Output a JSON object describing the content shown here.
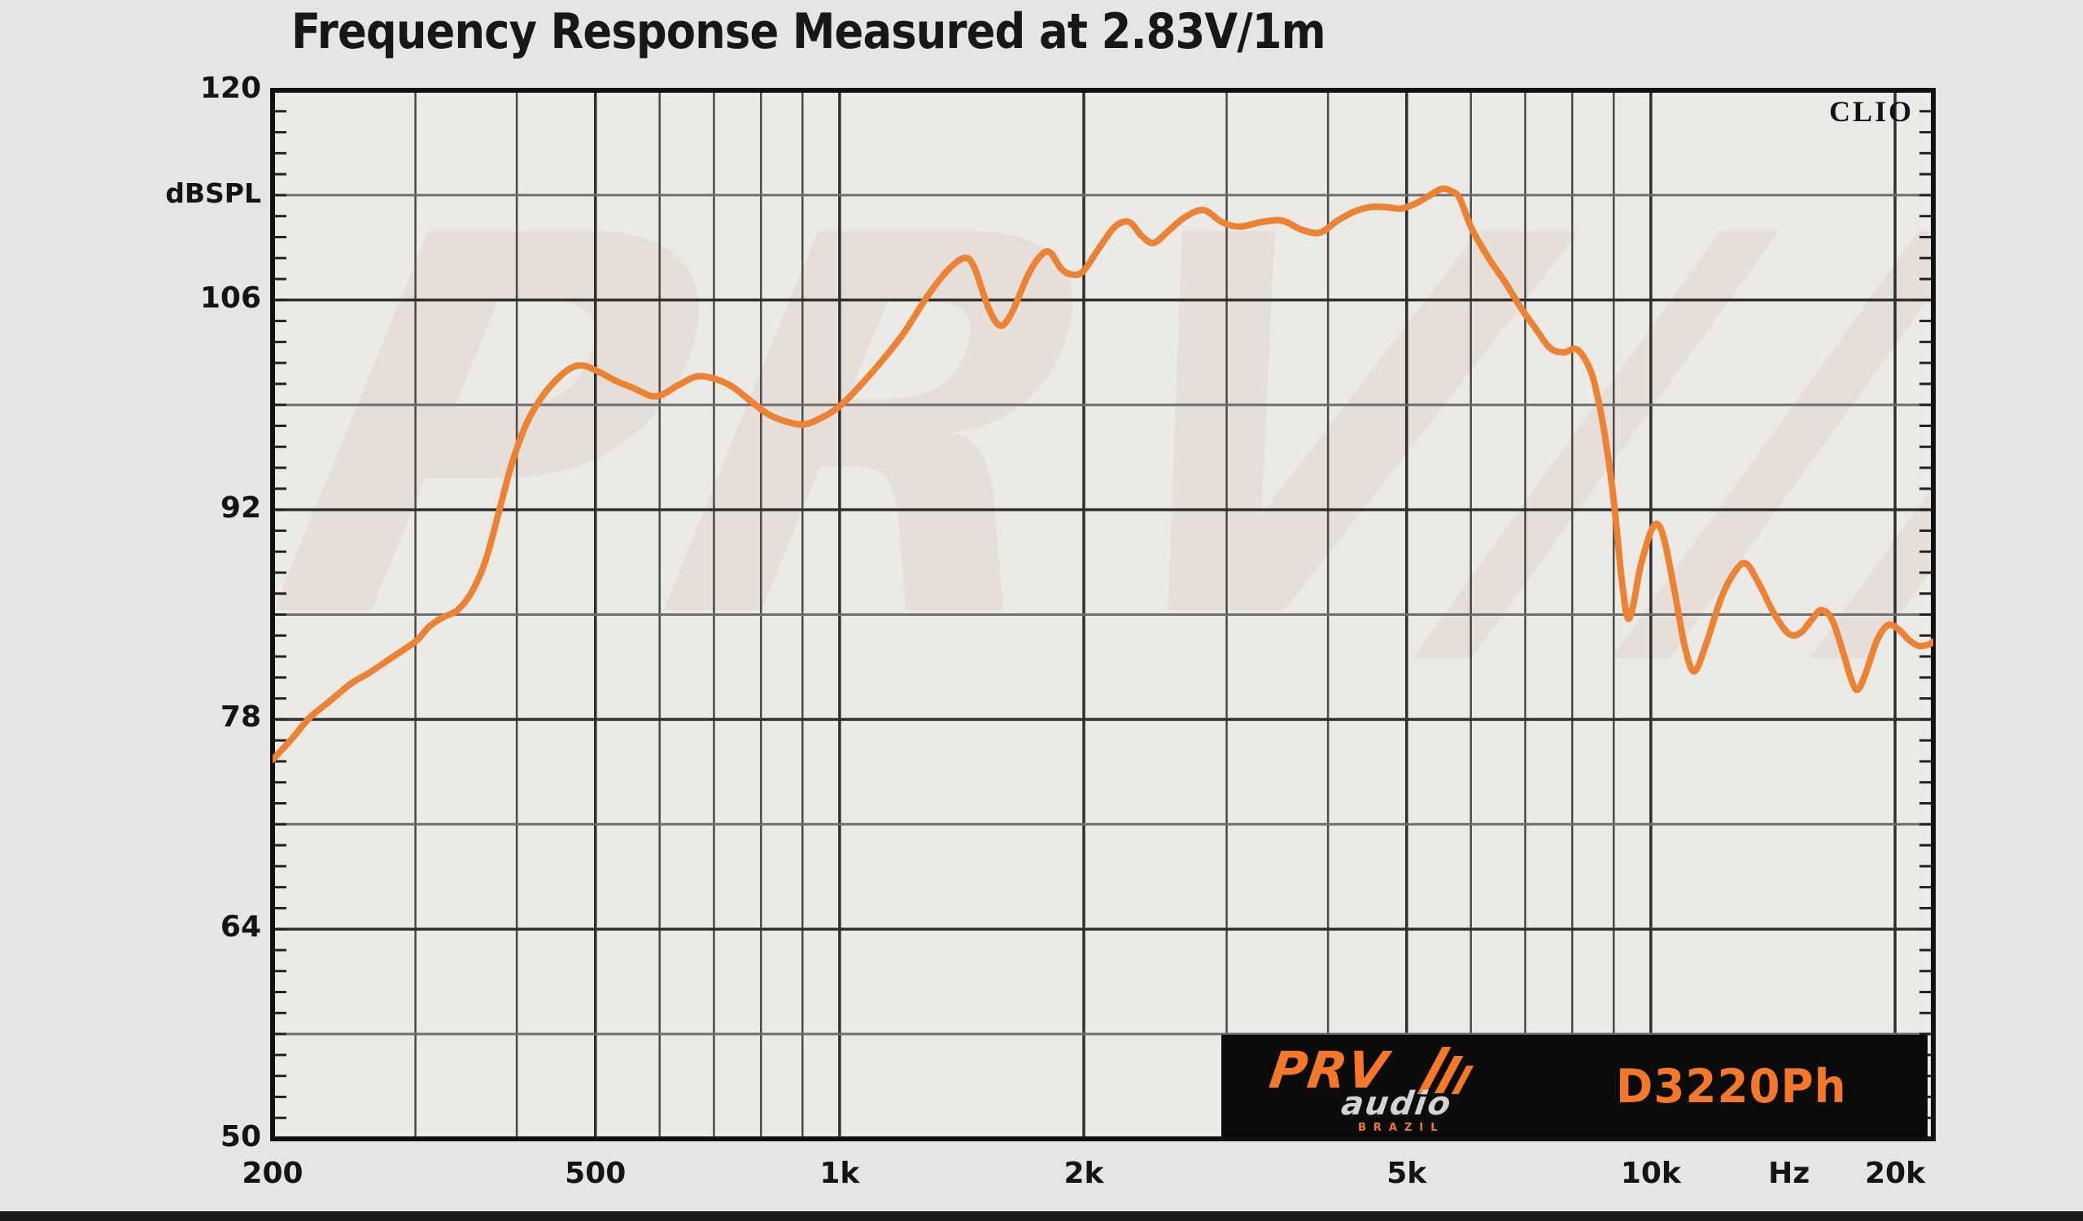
{
  "title": "Frequency Response Measured at 2.83V/1m",
  "branding": {
    "clio": "CLIO",
    "prv": "PRV",
    "audio": "audio",
    "brazil": "BRAZIL",
    "model": "D3220Ph",
    "orange": "#f4772a",
    "watermark": "PRV///"
  },
  "chart_data": {
    "type": "line",
    "title": "Frequency Response Measured at 2.83V/1m",
    "x_scale": "log",
    "x_unit": "Hz",
    "y_unit": "dBSPL",
    "xlim": [
      200,
      22300
    ],
    "ylim": [
      50,
      120
    ],
    "grid": true,
    "curve_color": "#ec8334",
    "y_major_ticks": [
      {
        "v": 120,
        "label": "120"
      },
      {
        "v": 106,
        "label": "106"
      },
      {
        "v": 92,
        "label": "92"
      },
      {
        "v": 78,
        "label": "78"
      },
      {
        "v": 64,
        "label": "64"
      },
      {
        "v": 50,
        "label": "50"
      }
    ],
    "y_mid_gridlines": [
      113,
      99,
      85,
      71,
      57
    ],
    "y_minor_tick_step": 1.4,
    "x_labels": [
      {
        "f": 200,
        "label": "200",
        "unit": false
      },
      {
        "f": 500,
        "label": "500",
        "unit": false
      },
      {
        "f": 1000,
        "label": "1k",
        "unit": false
      },
      {
        "f": 2000,
        "label": "2k",
        "unit": false
      },
      {
        "f": 5000,
        "label": "5k",
        "unit": false
      },
      {
        "f": 10000,
        "label": "10k",
        "unit": false
      },
      {
        "f": 14800,
        "label": "Hz",
        "unit": true
      },
      {
        "f": 20000,
        "label": "20k",
        "unit": false
      }
    ],
    "x_major_gridlines": [
      500,
      1000,
      2000,
      5000,
      10000,
      20000
    ],
    "x_minor_gridlines": [
      300,
      400,
      600,
      700,
      800,
      900,
      3000,
      4000,
      6000,
      7000,
      8000,
      9000
    ],
    "series": [
      {
        "name": "D3220Ph SPL",
        "points": [
          [
            200,
            75.3
          ],
          [
            212,
            76.8
          ],
          [
            222,
            78.1
          ],
          [
            235,
            79.2
          ],
          [
            250,
            80.4
          ],
          [
            263,
            81.1
          ],
          [
            280,
            82.1
          ],
          [
            300,
            83.2
          ],
          [
            312,
            84.2
          ],
          [
            324,
            84.8
          ],
          [
            338,
            85.3
          ],
          [
            352,
            86.5
          ],
          [
            366,
            88.6
          ],
          [
            380,
            91.8
          ],
          [
            394,
            95.0
          ],
          [
            410,
            97.6
          ],
          [
            428,
            99.4
          ],
          [
            448,
            100.7
          ],
          [
            468,
            101.5
          ],
          [
            485,
            101.6
          ],
          [
            505,
            101.2
          ],
          [
            530,
            100.6
          ],
          [
            558,
            100.1
          ],
          [
            585,
            99.6
          ],
          [
            605,
            99.7
          ],
          [
            632,
            100.3
          ],
          [
            668,
            100.9
          ],
          [
            705,
            100.7
          ],
          [
            738,
            100.2
          ],
          [
            775,
            99.3
          ],
          [
            815,
            98.4
          ],
          [
            858,
            97.9
          ],
          [
            905,
            97.7
          ],
          [
            955,
            98.2
          ],
          [
            1005,
            99.0
          ],
          [
            1065,
            100.4
          ],
          [
            1130,
            102.0
          ],
          [
            1200,
            103.8
          ],
          [
            1285,
            106.3
          ],
          [
            1360,
            108.0
          ],
          [
            1425,
            108.8
          ],
          [
            1465,
            108.2
          ],
          [
            1525,
            105.5
          ],
          [
            1575,
            104.3
          ],
          [
            1625,
            105.0
          ],
          [
            1705,
            107.6
          ],
          [
            1765,
            108.9
          ],
          [
            1815,
            109.2
          ],
          [
            1875,
            108.1
          ],
          [
            1930,
            107.7
          ],
          [
            1995,
            107.9
          ],
          [
            2085,
            109.4
          ],
          [
            2185,
            110.9
          ],
          [
            2275,
            111.2
          ],
          [
            2355,
            110.3
          ],
          [
            2435,
            109.8
          ],
          [
            2530,
            110.5
          ],
          [
            2660,
            111.5
          ],
          [
            2810,
            112.0
          ],
          [
            2960,
            111.2
          ],
          [
            3110,
            110.9
          ],
          [
            3310,
            111.2
          ],
          [
            3510,
            111.3
          ],
          [
            3710,
            110.7
          ],
          [
            3910,
            110.5
          ],
          [
            4110,
            111.3
          ],
          [
            4310,
            111.9
          ],
          [
            4510,
            112.2
          ],
          [
            4710,
            112.2
          ],
          [
            4910,
            112.1
          ],
          [
            5110,
            112.4
          ],
          [
            5310,
            112.9
          ],
          [
            5510,
            113.4
          ],
          [
            5660,
            113.3
          ],
          [
            5810,
            112.8
          ],
          [
            6010,
            110.8
          ],
          [
            6310,
            108.8
          ],
          [
            6610,
            107.2
          ],
          [
            6910,
            105.5
          ],
          [
            7210,
            104.1
          ],
          [
            7510,
            102.8
          ],
          [
            7810,
            102.5
          ],
          [
            8110,
            102.7
          ],
          [
            8410,
            101.4
          ],
          [
            8610,
            99.4
          ],
          [
            8810,
            96.4
          ],
          [
            9010,
            92.4
          ],
          [
            9210,
            87.3
          ],
          [
            9360,
            84.8
          ],
          [
            9510,
            85.6
          ],
          [
            9710,
            88.2
          ],
          [
            10010,
            90.6
          ],
          [
            10210,
            91.0
          ],
          [
            10410,
            89.8
          ],
          [
            10710,
            86.4
          ],
          [
            11010,
            82.9
          ],
          [
            11310,
            81.2
          ],
          [
            11710,
            83.1
          ],
          [
            12210,
            86.1
          ],
          [
            12710,
            87.9
          ],
          [
            13110,
            88.4
          ],
          [
            13610,
            87.0
          ],
          [
            14210,
            85.0
          ],
          [
            14810,
            83.7
          ],
          [
            15310,
            83.8
          ],
          [
            15810,
            84.7
          ],
          [
            16210,
            85.3
          ],
          [
            16710,
            84.7
          ],
          [
            17210,
            82.7
          ],
          [
            17710,
            80.5
          ],
          [
            18010,
            80.0
          ],
          [
            18410,
            81.1
          ],
          [
            19010,
            83.3
          ],
          [
            19610,
            84.3
          ],
          [
            20210,
            84.0
          ],
          [
            20810,
            83.3
          ],
          [
            21410,
            82.9
          ],
          [
            22000,
            83.0
          ],
          [
            22300,
            83.2
          ]
        ]
      }
    ],
    "colors": {
      "plot_bg": "#eceae7",
      "page_bg": "#e6e5e3",
      "grid_major": "#2f2f2f",
      "grid_mid": "#6e6e6e",
      "grid_minor": "#4a4a4a",
      "border": "#111111",
      "curve": "#ec8334"
    }
  }
}
